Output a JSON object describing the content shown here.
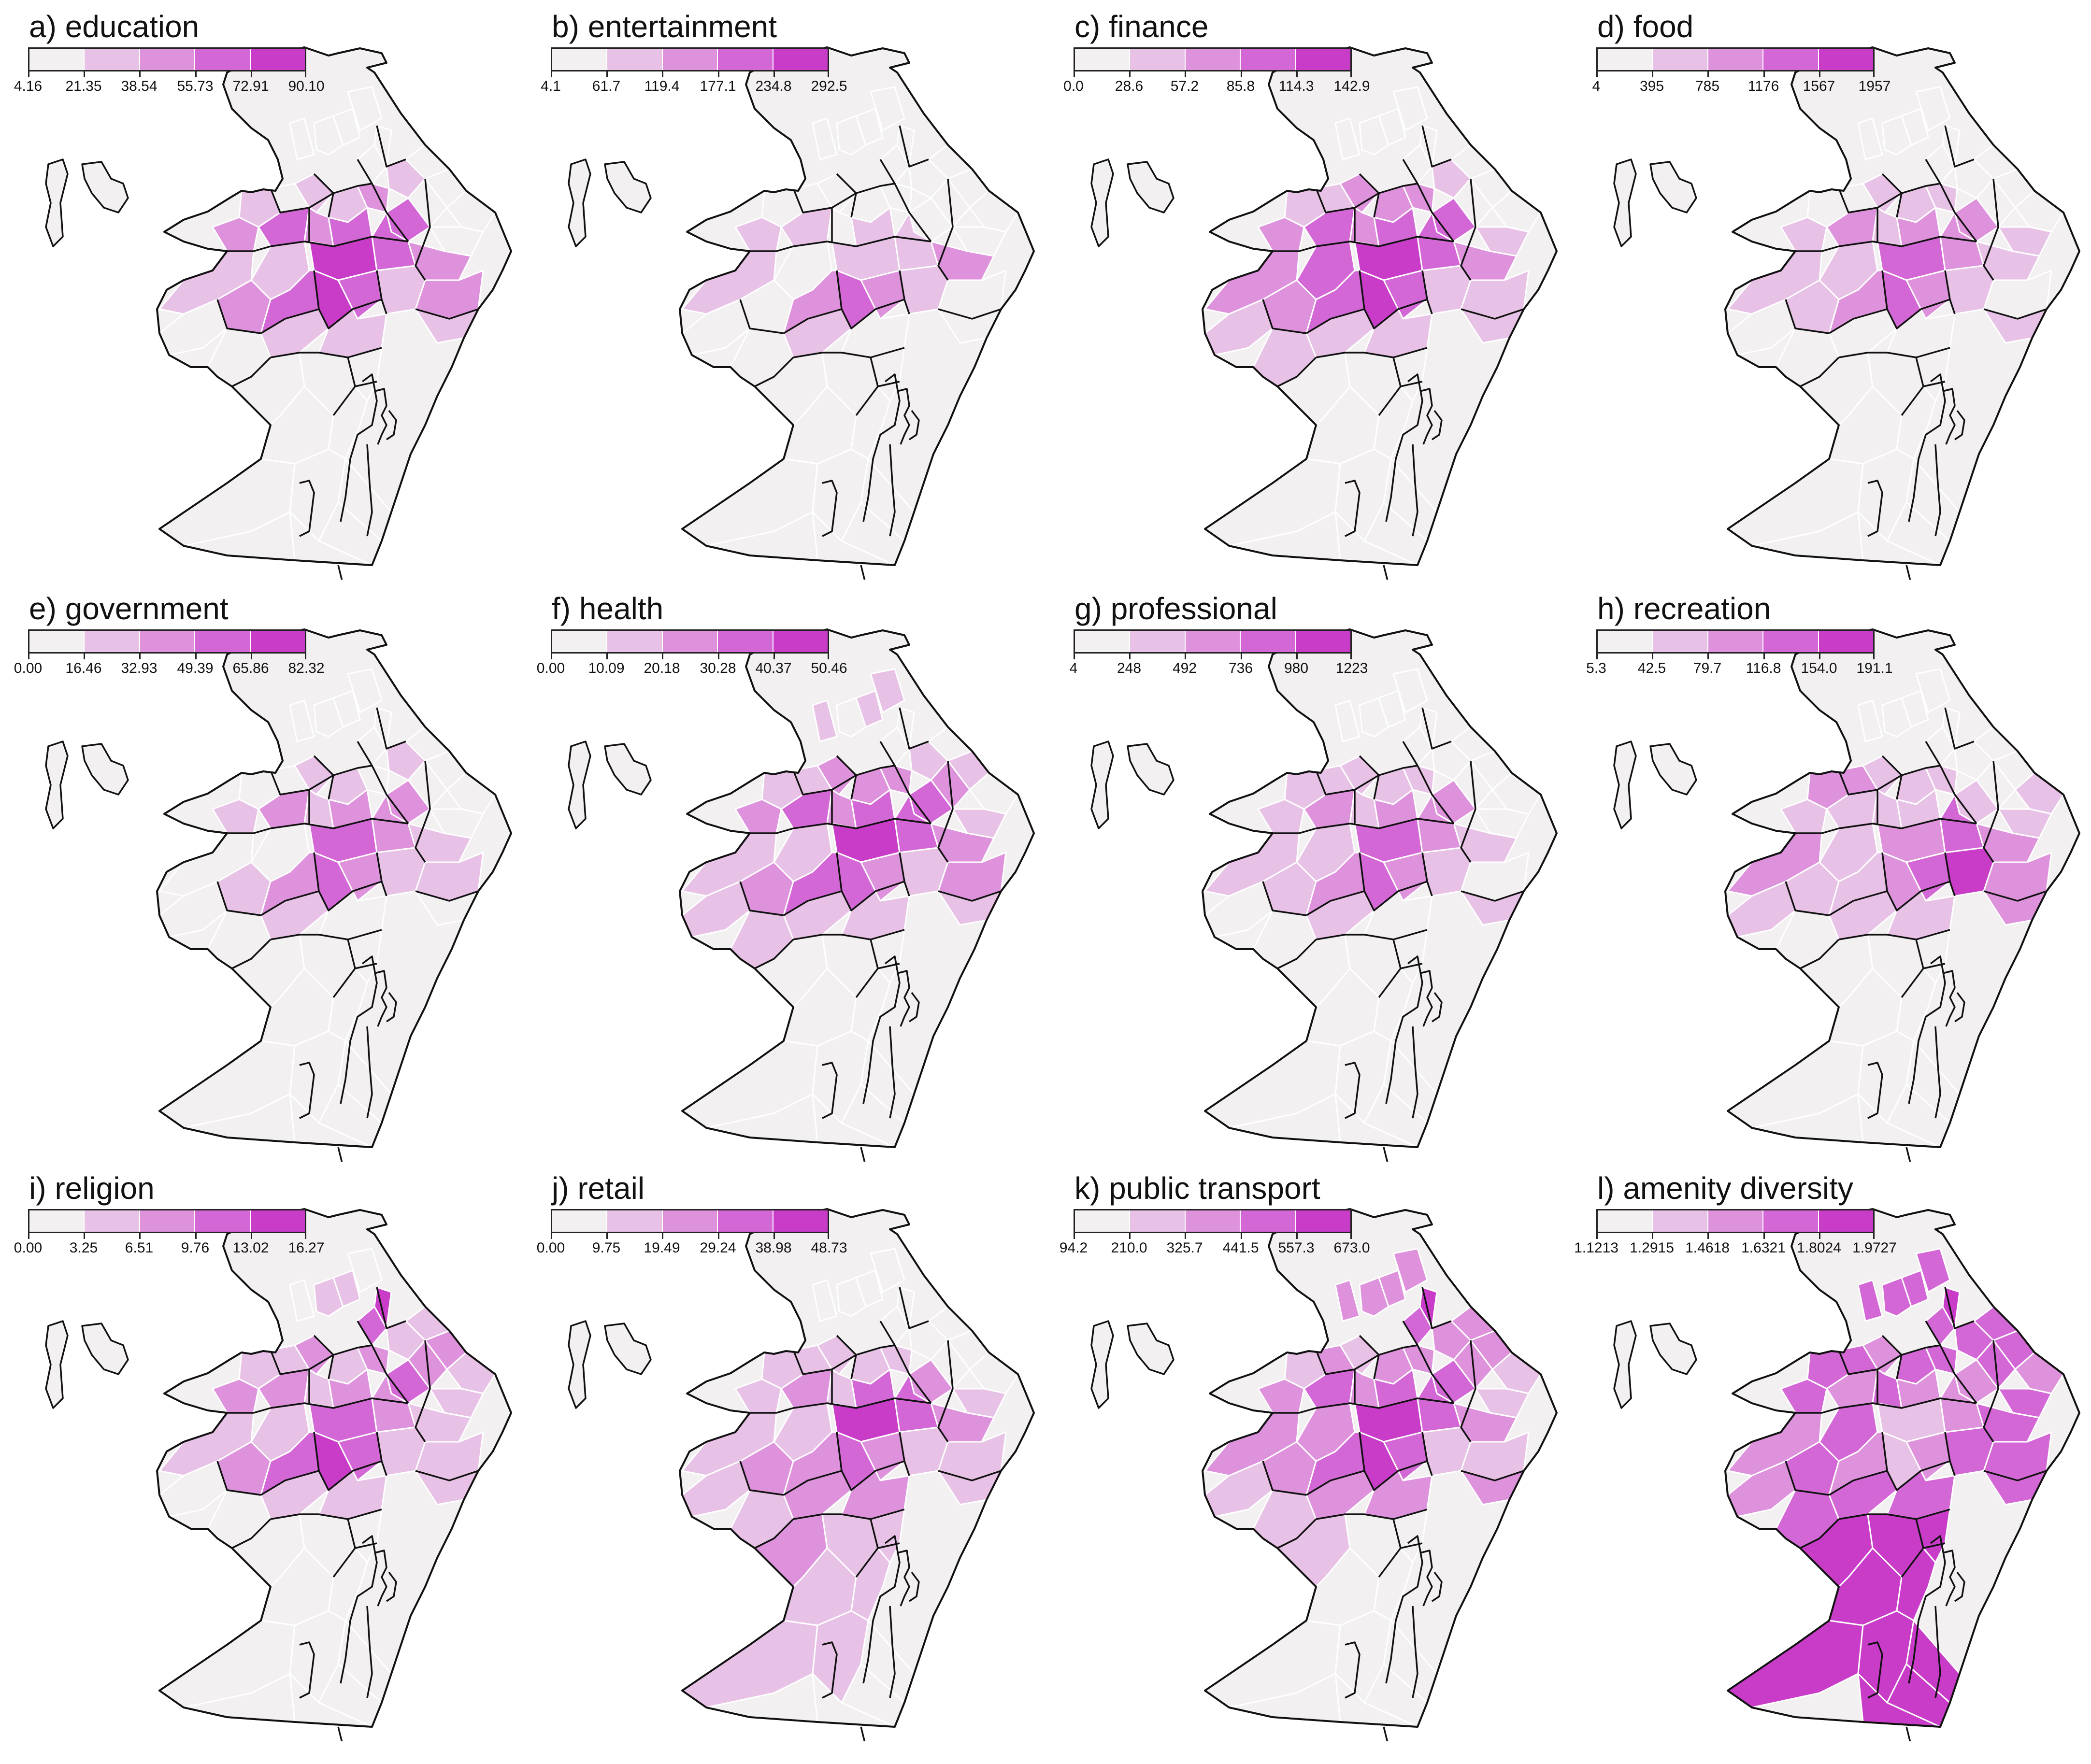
{
  "colors": {
    "scale": [
      "#f2f0f0",
      "#e8c2e6",
      "#de92dc",
      "#d467d6",
      "#c83cc8"
    ],
    "stroke_black": "#111111",
    "stroke_white": "#ffffff"
  },
  "panels": [
    {
      "id": "a",
      "title": "a) education",
      "ticks": [
        "4.16",
        "21.35",
        "38.54",
        "55.73",
        "72.91",
        "90.10"
      ],
      "levels": [
        0,
        0,
        0,
        0,
        0,
        0,
        1,
        0,
        0,
        0,
        0,
        1,
        0,
        1,
        1,
        2,
        3,
        0,
        2,
        3,
        2,
        3,
        4,
        3,
        2,
        1,
        0,
        2,
        1,
        3,
        4,
        3,
        1,
        2,
        1,
        0,
        1,
        1,
        0,
        0,
        0,
        0,
        0,
        0,
        0,
        0,
        0,
        0
      ]
    },
    {
      "id": "b",
      "title": "b) entertainment",
      "ticks": [
        "4.1",
        "61.7",
        "119.4",
        "177.1",
        "234.8",
        "292.5"
      ],
      "levels": [
        0,
        0,
        0,
        0,
        0,
        0,
        0,
        0,
        0,
        0,
        0,
        0,
        0,
        0,
        0,
        0,
        0,
        0,
        1,
        1,
        0,
        1,
        1,
        1,
        2,
        1,
        0,
        0,
        0,
        2,
        3,
        2,
        1,
        0,
        0,
        0,
        1,
        0,
        0,
        0,
        0,
        0,
        0,
        0,
        0,
        0,
        0,
        0
      ]
    },
    {
      "id": "c",
      "title": "c) finance",
      "ticks": [
        "0.0",
        "28.6",
        "57.2",
        "85.8",
        "114.3",
        "142.9"
      ],
      "levels": [
        0,
        0,
        0,
        0,
        0,
        0,
        1,
        0,
        0,
        0,
        0,
        1,
        1,
        2,
        2,
        2,
        3,
        1,
        2,
        3,
        2,
        3,
        4,
        3,
        2,
        2,
        1,
        2,
        3,
        3,
        4,
        3,
        1,
        1,
        1,
        1,
        1,
        1,
        0,
        0,
        0,
        0,
        0,
        0,
        0,
        0,
        0,
        0
      ]
    },
    {
      "id": "d",
      "title": "d) food",
      "ticks": [
        "4",
        "395",
        "785",
        "1176",
        "1567",
        "1957"
      ],
      "levels": [
        0,
        0,
        0,
        0,
        0,
        0,
        0,
        0,
        0,
        0,
        0,
        0,
        0,
        1,
        1,
        1,
        2,
        1,
        1,
        2,
        1,
        2,
        3,
        2,
        1,
        1,
        0,
        1,
        1,
        2,
        3,
        2,
        1,
        0,
        1,
        0,
        0,
        0,
        0,
        0,
        0,
        0,
        0,
        0,
        0,
        0,
        0,
        0
      ]
    },
    {
      "id": "e",
      "title": "e) government",
      "ticks": [
        "0.00",
        "16.46",
        "32.93",
        "49.39",
        "65.86",
        "82.32"
      ],
      "levels": [
        0,
        0,
        0,
        0,
        0,
        0,
        1,
        0,
        0,
        0,
        0,
        0,
        0,
        1,
        1,
        0,
        2,
        0,
        1,
        2,
        1,
        2,
        3,
        2,
        1,
        0,
        0,
        1,
        0,
        2,
        3,
        2,
        1,
        1,
        0,
        0,
        1,
        0,
        0,
        0,
        0,
        0,
        0,
        0,
        0,
        0,
        0,
        0
      ]
    },
    {
      "id": "f",
      "title": "f) health",
      "ticks": [
        "0.00",
        "10.09",
        "20.18",
        "30.28",
        "40.37",
        "50.46"
      ],
      "levels": [
        1,
        0,
        1,
        0,
        0,
        1,
        1,
        0,
        1,
        2,
        0,
        1,
        1,
        2,
        2,
        2,
        3,
        1,
        2,
        3,
        2,
        3,
        4,
        3,
        2,
        1,
        1,
        2,
        1,
        3,
        3,
        2,
        1,
        2,
        1,
        1,
        1,
        1,
        0,
        0,
        0,
        0,
        0,
        0,
        0,
        0,
        0,
        0
      ]
    },
    {
      "id": "g",
      "title": "g) professional",
      "ticks": [
        "4",
        "248",
        "492",
        "736",
        "980",
        "1223"
      ],
      "levels": [
        0,
        0,
        0,
        0,
        0,
        0,
        0,
        0,
        0,
        0,
        0,
        1,
        1,
        1,
        1,
        1,
        2,
        0,
        1,
        2,
        1,
        2,
        3,
        2,
        1,
        1,
        0,
        1,
        1,
        2,
        3,
        2,
        1,
        0,
        1,
        0,
        1,
        0,
        0,
        0,
        0,
        0,
        0,
        0,
        0,
        0,
        0,
        0
      ]
    },
    {
      "id": "h",
      "title": "h) recreation",
      "ticks": [
        "5.3",
        "42.5",
        "79.7",
        "116.8",
        "154.0",
        "191.1"
      ],
      "levels": [
        0,
        0,
        0,
        0,
        0,
        0,
        0,
        0,
        0,
        0,
        1,
        2,
        2,
        1,
        1,
        1,
        1,
        1,
        1,
        1,
        1,
        1,
        2,
        3,
        2,
        2,
        1,
        1,
        1,
        1,
        2,
        3,
        4,
        2,
        2,
        0,
        1,
        1,
        0,
        0,
        0,
        0,
        0,
        0,
        0,
        0,
        0,
        0
      ]
    },
    {
      "id": "i",
      "title": "i) religion",
      "ticks": [
        "0.00",
        "3.25",
        "6.51",
        "9.76",
        "13.02",
        "16.27"
      ],
      "levels": [
        0,
        1,
        1,
        3,
        4,
        0,
        1,
        1,
        2,
        2,
        1,
        1,
        1,
        2,
        1,
        2,
        3,
        1,
        2,
        2,
        1,
        2,
        3,
        2,
        1,
        1,
        0,
        2,
        1,
        3,
        4,
        3,
        1,
        1,
        1,
        0,
        1,
        1,
        0,
        0,
        0,
        0,
        0,
        0,
        0,
        0,
        0,
        0
      ]
    },
    {
      "id": "j",
      "title": "j) retail",
      "ticks": [
        "0.00",
        "9.75",
        "19.49",
        "29.24",
        "38.98",
        "48.73"
      ],
      "levels": [
        0,
        0,
        0,
        0,
        0,
        0,
        0,
        0,
        0,
        0,
        0,
        1,
        1,
        1,
        1,
        1,
        2,
        1,
        1,
        2,
        1,
        3,
        4,
        3,
        2,
        1,
        1,
        2,
        1,
        2,
        3,
        2,
        1,
        1,
        1,
        1,
        2,
        2,
        2,
        1,
        1,
        1,
        1,
        1,
        1,
        0,
        0,
        0
      ]
    },
    {
      "id": "k",
      "title": "k) public transport",
      "ticks": [
        "94.2",
        "210.0",
        "325.7",
        "441.5",
        "557.3",
        "673.0"
      ],
      "levels": [
        2,
        2,
        2,
        3,
        4,
        2,
        2,
        2,
        2,
        2,
        1,
        1,
        2,
        1,
        2,
        2,
        3,
        1,
        2,
        3,
        2,
        3,
        4,
        3,
        2,
        2,
        1,
        2,
        2,
        3,
        4,
        3,
        1,
        1,
        2,
        1,
        2,
        2,
        1,
        0,
        0,
        0,
        0,
        0,
        0,
        0,
        0,
        0
      ]
    },
    {
      "id": "l",
      "title": "l) amenity diversity",
      "ticks": [
        "1.1213",
        "1.2915",
        "1.4618",
        "1.6321",
        "1.8024",
        "1.9727"
      ],
      "levels": [
        3,
        3,
        3,
        3,
        4,
        3,
        3,
        3,
        3,
        3,
        2,
        3,
        3,
        2,
        3,
        3,
        2,
        3,
        3,
        2,
        3,
        2,
        1,
        2,
        3,
        2,
        2,
        3,
        3,
        2,
        1,
        2,
        3,
        3,
        3,
        3,
        3,
        3,
        4,
        4,
        4,
        4,
        4,
        4,
        4,
        4,
        4,
        4
      ]
    }
  ]
}
